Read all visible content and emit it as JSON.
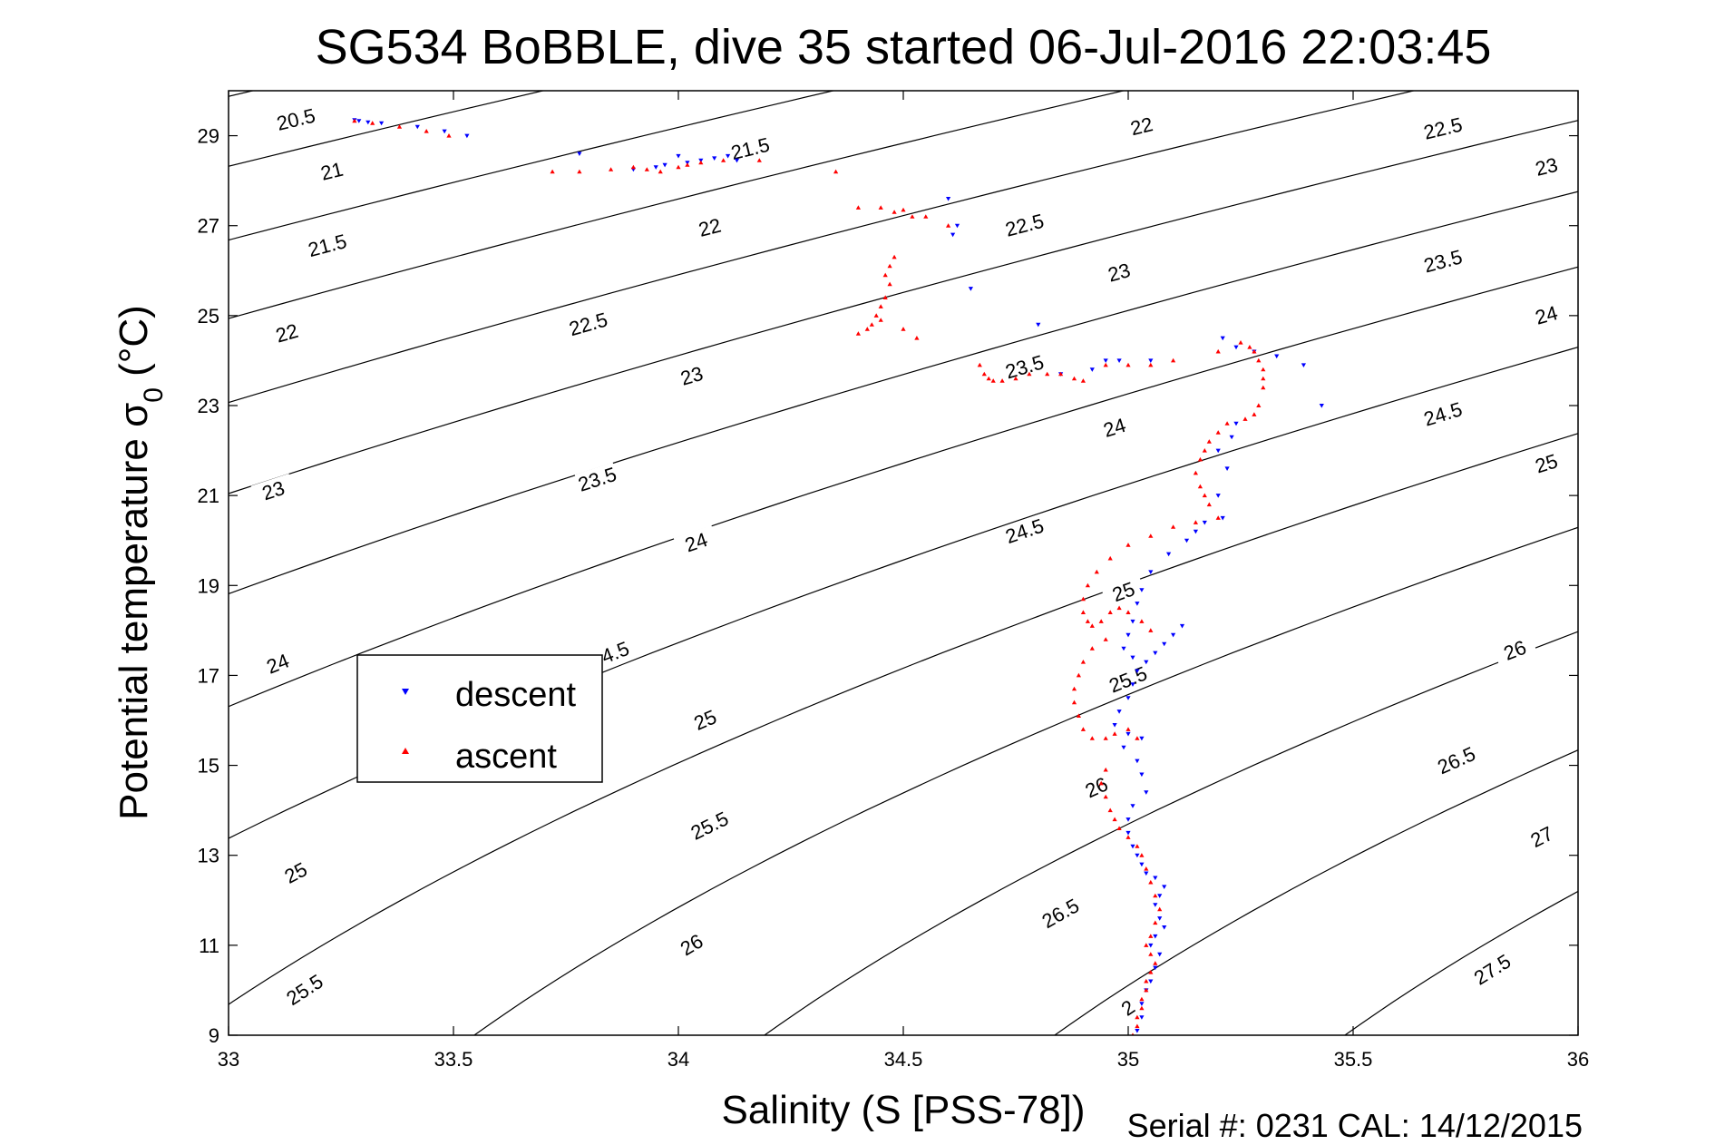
{
  "chart_data": {
    "type": "scatter",
    "title": "SG534 BoBBLE, dive 35 started 06-Jul-2016 22:03:45",
    "xlabel": "Salinity (S [PSS-78])",
    "ylabel": "Potential temperature σ",
    "ylabel_sub": "0",
    "ylabel_suffix": " (°C)",
    "xlim": [
      33,
      36
    ],
    "ylim": [
      9,
      30
    ],
    "xticks": [
      "33",
      "33.5",
      "34",
      "34.5",
      "35",
      "35.5",
      "36"
    ],
    "yticks": [
      "9",
      "11",
      "13",
      "15",
      "17",
      "19",
      "21",
      "23",
      "25",
      "27",
      "29"
    ],
    "grid": false,
    "legend": {
      "placement": "center-left"
    },
    "footer": "Serial #: 0231  CAL: 14/12/2015",
    "colors": {
      "descent": "#0000ff",
      "ascent": "#ff0000",
      "contour": "#000000"
    },
    "contours": {
      "levels": [
        20.5,
        21,
        21.5,
        22,
        22.5,
        23,
        23.5,
        24,
        24.5,
        25,
        25.5,
        26,
        26.5,
        27,
        27.5
      ],
      "labels": [
        {
          "text": "20.5",
          "x": 33.15,
          "y": 29.35
        },
        {
          "text": "21",
          "x": 33.23,
          "y": 28.2
        },
        {
          "text": "21.5",
          "x": 33.22,
          "y": 26.55
        },
        {
          "text": "22",
          "x": 33.13,
          "y": 24.6
        },
        {
          "text": "23",
          "x": 33.1,
          "y": 21.1
        },
        {
          "text": "24",
          "x": 33.11,
          "y": 17.25
        },
        {
          "text": "25",
          "x": 33.15,
          "y": 12.6
        },
        {
          "text": "25.5",
          "x": 33.17,
          "y": 10.0
        },
        {
          "text": "21.5",
          "x": 34.16,
          "y": 28.7
        },
        {
          "text": "22",
          "x": 34.07,
          "y": 26.95
        },
        {
          "text": "22.5",
          "x": 33.8,
          "y": 24.8
        },
        {
          "text": "23",
          "x": 34.03,
          "y": 23.65
        },
        {
          "text": "23.5",
          "x": 33.82,
          "y": 21.35
        },
        {
          "text": "24",
          "x": 34.04,
          "y": 19.95
        },
        {
          "text": "4.5",
          "x": 33.86,
          "y": 17.5
        },
        {
          "text": "25",
          "x": 34.06,
          "y": 16.0
        },
        {
          "text": "25.5",
          "x": 34.07,
          "y": 13.65
        },
        {
          "text": "26",
          "x": 34.03,
          "y": 11.0
        },
        {
          "text": "22",
          "x": 35.03,
          "y": 29.2
        },
        {
          "text": "22.5",
          "x": 34.77,
          "y": 27.0
        },
        {
          "text": "23",
          "x": 34.98,
          "y": 25.95
        },
        {
          "text": "23.5",
          "x": 34.77,
          "y": 23.85
        },
        {
          "text": "24",
          "x": 34.97,
          "y": 22.5
        },
        {
          "text": "24.5",
          "x": 34.77,
          "y": 20.2
        },
        {
          "text": "25",
          "x": 34.99,
          "y": 18.85
        },
        {
          "text": "25.5",
          "x": 35.0,
          "y": 16.9
        },
        {
          "text": "26",
          "x": 34.93,
          "y": 14.5
        },
        {
          "text": "26.5",
          "x": 34.85,
          "y": 11.7
        },
        {
          "text": "2",
          "x": 35.0,
          "y": 9.6
        },
        {
          "text": "22.5",
          "x": 35.7,
          "y": 29.15
        },
        {
          "text": "23",
          "x": 35.93,
          "y": 28.3
        },
        {
          "text": "23.5",
          "x": 35.7,
          "y": 26.2
        },
        {
          "text": "24",
          "x": 35.93,
          "y": 25.0
        },
        {
          "text": "24.5",
          "x": 35.7,
          "y": 22.8
        },
        {
          "text": "25",
          "x": 35.93,
          "y": 21.7
        },
        {
          "text": "26",
          "x": 35.86,
          "y": 17.55
        },
        {
          "text": "26.5",
          "x": 35.73,
          "y": 15.1
        },
        {
          "text": "27",
          "x": 35.92,
          "y": 13.4
        },
        {
          "text": "27.5",
          "x": 35.81,
          "y": 10.45
        }
      ]
    },
    "series": [
      {
        "name": "descent",
        "marker": "triangle-down",
        "x": [
          33.28,
          33.29,
          33.31,
          33.34,
          33.42,
          33.48,
          33.53,
          33.78,
          33.9,
          33.95,
          33.97,
          34.0,
          34.02,
          34.05,
          34.08,
          34.11,
          34.13,
          34.6,
          34.61,
          34.62,
          34.65,
          34.8,
          34.85,
          34.92,
          34.95,
          34.98,
          35.05,
          35.21,
          35.24,
          35.28,
          35.33,
          35.39,
          35.43,
          35.24,
          35.23,
          35.2,
          35.22,
          35.2,
          35.21,
          35.17,
          35.15,
          35.13,
          35.09,
          35.05,
          35.03,
          35.02,
          35.01,
          35.0,
          34.99,
          35.01,
          35.12,
          35.1,
          35.08,
          35.06,
          35.04,
          35.02,
          35.01,
          35.0,
          34.98,
          34.97,
          35.0,
          35.03,
          34.99,
          35.02,
          35.03,
          35.04,
          35.01,
          35.0,
          35.0,
          35.01,
          35.02,
          35.03,
          35.04,
          35.06,
          35.08,
          35.07,
          35.06,
          35.07,
          35.08,
          35.06,
          35.05,
          35.07,
          35.06,
          35.05,
          35.04,
          35.03,
          35.03,
          35.02
        ],
        "y": [
          29.35,
          29.33,
          29.3,
          29.28,
          29.2,
          29.1,
          29.0,
          28.6,
          28.25,
          28.3,
          28.35,
          28.55,
          28.4,
          28.45,
          28.5,
          28.55,
          28.45,
          27.6,
          26.8,
          27.0,
          25.6,
          24.8,
          23.7,
          23.8,
          24.0,
          24.0,
          24.0,
          24.5,
          24.3,
          24.2,
          24.1,
          23.9,
          23.0,
          22.6,
          22.3,
          22.0,
          21.6,
          21.0,
          20.5,
          20.4,
          20.2,
          20.0,
          19.7,
          19.3,
          18.9,
          18.6,
          18.2,
          17.9,
          17.6,
          17.4,
          18.1,
          17.9,
          17.7,
          17.5,
          17.3,
          17.1,
          16.8,
          16.5,
          16.2,
          15.9,
          15.7,
          15.6,
          15.4,
          15.1,
          14.8,
          14.4,
          14.1,
          13.8,
          13.5,
          13.2,
          13.0,
          12.8,
          12.6,
          12.5,
          12.3,
          12.1,
          11.9,
          11.6,
          11.4,
          11.2,
          11.0,
          10.8,
          10.5,
          10.2,
          10.0,
          9.7,
          9.4,
          9.1
        ]
      },
      {
        "name": "ascent",
        "marker": "triangle-up",
        "x": [
          33.28,
          33.32,
          33.38,
          33.44,
          33.49,
          33.72,
          33.78,
          33.85,
          33.9,
          33.93,
          33.96,
          34.0,
          34.02,
          34.05,
          34.1,
          34.18,
          34.35,
          34.4,
          34.45,
          34.48,
          34.5,
          34.52,
          34.55,
          34.6,
          34.48,
          34.47,
          34.46,
          34.47,
          34.46,
          34.45,
          34.44,
          34.43,
          34.4,
          34.42,
          34.45,
          34.5,
          34.53,
          34.67,
          34.68,
          34.69,
          34.7,
          34.72,
          34.75,
          34.78,
          34.82,
          34.85,
          34.88,
          34.9,
          34.95,
          35.0,
          35.05,
          35.1,
          35.2,
          35.25,
          35.27,
          35.28,
          35.29,
          35.3,
          35.3,
          35.3,
          35.29,
          35.28,
          35.26,
          35.22,
          35.2,
          35.18,
          35.17,
          35.16,
          35.15,
          35.16,
          35.17,
          35.18,
          35.2,
          35.15,
          35.1,
          35.05,
          35.0,
          34.96,
          34.93,
          34.91,
          34.9,
          34.9,
          34.91,
          34.92,
          34.94,
          34.96,
          34.98,
          35.0,
          35.03,
          35.05,
          34.95,
          34.92,
          34.9,
          34.89,
          34.88,
          34.88,
          34.89,
          34.9,
          34.92,
          34.95,
          34.97,
          35.0,
          35.02,
          34.95,
          34.94,
          34.95,
          34.96,
          34.97,
          34.98,
          35.0,
          35.02,
          35.03,
          35.04,
          35.05,
          35.06,
          35.07,
          35.06,
          35.05,
          35.04,
          35.05,
          35.06,
          35.05,
          35.04,
          35.04,
          35.03,
          35.03,
          35.02,
          35.02,
          35.01
        ],
        "y": [
          29.33,
          29.28,
          29.2,
          29.1,
          29.0,
          28.2,
          28.2,
          28.25,
          28.3,
          28.25,
          28.2,
          28.3,
          28.35,
          28.4,
          28.45,
          28.45,
          28.2,
          27.4,
          27.4,
          27.3,
          27.35,
          27.2,
          27.2,
          27.0,
          26.3,
          26.1,
          25.9,
          25.7,
          25.4,
          25.2,
          25.0,
          24.8,
          24.6,
          24.7,
          24.9,
          24.7,
          24.5,
          23.9,
          23.7,
          23.6,
          23.55,
          23.55,
          23.6,
          23.7,
          23.7,
          23.7,
          23.6,
          23.55,
          23.9,
          23.9,
          23.9,
          24.0,
          24.2,
          24.4,
          24.3,
          24.2,
          24.0,
          23.8,
          23.6,
          23.4,
          23.0,
          22.8,
          22.7,
          22.6,
          22.4,
          22.2,
          22.0,
          21.8,
          21.5,
          21.2,
          21.0,
          20.8,
          20.5,
          20.4,
          20.3,
          20.1,
          19.9,
          19.6,
          19.3,
          19.0,
          18.7,
          18.4,
          18.2,
          18.1,
          18.2,
          18.4,
          18.5,
          18.4,
          18.2,
          18.0,
          17.8,
          17.6,
          17.3,
          17.0,
          16.7,
          16.4,
          16.1,
          15.8,
          15.6,
          15.6,
          15.7,
          15.8,
          15.6,
          14.9,
          14.6,
          14.3,
          14.0,
          13.8,
          13.6,
          13.4,
          13.2,
          13.0,
          12.7,
          12.4,
          12.1,
          11.8,
          11.5,
          11.2,
          11.0,
          10.8,
          10.6,
          10.4,
          10.2,
          10.0,
          9.8,
          9.6,
          9.4,
          9.2,
          9.0
        ]
      }
    ]
  }
}
